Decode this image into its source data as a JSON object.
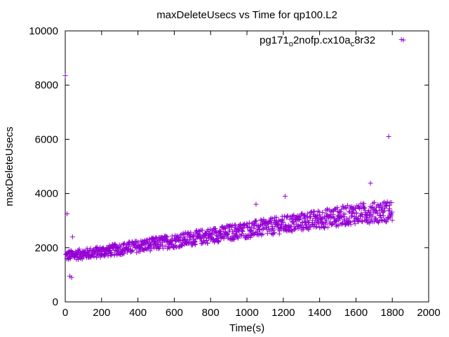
{
  "chart_data": {
    "type": "scatter",
    "title": "maxDeleteUsecs vs Time for qp100.L2",
    "xlabel": "Time(s)",
    "ylabel": "maxDeleteUsecs",
    "xlim": [
      0,
      2000
    ],
    "ylim": [
      0,
      10000
    ],
    "xticks": [
      "0",
      "200",
      "400",
      "600",
      "800",
      "1000",
      "1200",
      "1400",
      "1600",
      "1800",
      "2000"
    ],
    "yticks": [
      "0",
      "2000",
      "4000",
      "6000",
      "8000",
      "10000"
    ],
    "grid": false,
    "legend_position": "top-right",
    "marker": "plus",
    "color": "#9400d3",
    "series": [
      {
        "name_parts": {
          "a": "pg171",
          "b": "o",
          "c": "2nofp.cx10a",
          "d": "c",
          "e": "8r32"
        },
        "outliers": [
          [
            0,
            8350
          ],
          [
            10,
            3250
          ],
          [
            25,
            950
          ],
          [
            35,
            900
          ],
          [
            40,
            2400
          ],
          [
            1050,
            3600
          ],
          [
            1210,
            3900
          ],
          [
            1680,
            4380
          ],
          [
            1780,
            6100
          ],
          [
            1850,
            9680
          ]
        ],
        "trend_description": [
          [
            0,
            1700
          ],
          [
            200,
            1850
          ],
          [
            400,
            2050
          ],
          [
            600,
            2250
          ],
          [
            800,
            2450
          ],
          [
            1000,
            2650
          ],
          [
            1200,
            2850
          ],
          [
            1400,
            3050
          ],
          [
            1600,
            3250
          ],
          [
            1800,
            3350
          ]
        ]
      }
    ]
  }
}
